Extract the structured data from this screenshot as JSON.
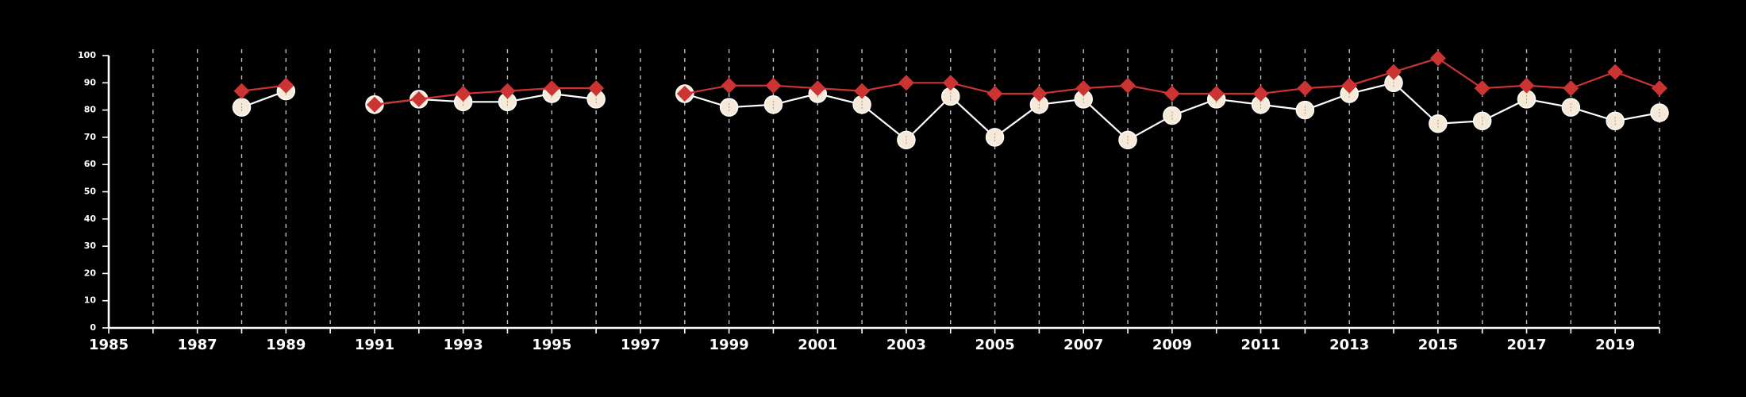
{
  "chart_data": {
    "type": "line",
    "title": "",
    "xlabel": "",
    "ylabel": "",
    "xlim": [
      1985,
      2020
    ],
    "ylim": [
      0,
      100
    ],
    "grid": {
      "vertical": true,
      "horizontal": false
    },
    "x_ticks": [
      1985,
      1987,
      1989,
      1991,
      1993,
      1995,
      1997,
      1999,
      2001,
      2003,
      2005,
      2007,
      2009,
      2011,
      2013,
      2015,
      2017,
      2019
    ],
    "y_ticks": [
      0,
      10,
      20,
      30,
      40,
      50,
      60,
      70,
      80,
      90,
      100
    ],
    "series": [
      {
        "color": "#f6e9d8",
        "line_color": "#ffffff",
        "marker": "circle",
        "segments": [
          {
            "x": [
              1988,
              1989
            ],
            "y": [
              81,
              87
            ]
          },
          {
            "x": [
              1991,
              1992,
              1993,
              1994,
              1995,
              1996
            ],
            "y": [
              82,
              84,
              83,
              83,
              86,
              84
            ]
          },
          {
            "x": [
              1998,
              1999,
              2000,
              2001,
              2002,
              2003,
              2004,
              2005,
              2006,
              2007,
              2008,
              2009,
              2010,
              2011,
              2012,
              2013,
              2014,
              2015,
              2016,
              2017,
              2018,
              2019,
              2020
            ],
            "y": [
              86,
              81,
              82,
              86,
              82,
              69,
              85,
              70,
              82,
              84,
              69,
              78,
              84,
              82,
              80,
              86,
              90,
              75,
              76,
              84,
              81,
              76,
              79
            ]
          }
        ]
      },
      {
        "color": "#cc3333",
        "line_color": "#cc3333",
        "marker": "diamond",
        "segments": [
          {
            "x": [
              1988,
              1989
            ],
            "y": [
              87,
              89
            ]
          },
          {
            "x": [
              1991,
              1992,
              1993,
              1994,
              1995,
              1996
            ],
            "y": [
              82,
              84,
              86,
              87,
              88,
              88
            ]
          },
          {
            "x": [
              1998,
              1999,
              2000,
              2001,
              2002,
              2003,
              2004,
              2005,
              2006,
              2007,
              2008,
              2009,
              2010,
              2011,
              2012,
              2013,
              2014,
              2015,
              2016,
              2017,
              2018,
              2019,
              2020
            ],
            "y": [
              86,
              89,
              89,
              88,
              87,
              90,
              90,
              86,
              86,
              88,
              89,
              86,
              86,
              86,
              88,
              89,
              94,
              99,
              88,
              89,
              88,
              94,
              88
            ]
          }
        ]
      }
    ]
  }
}
